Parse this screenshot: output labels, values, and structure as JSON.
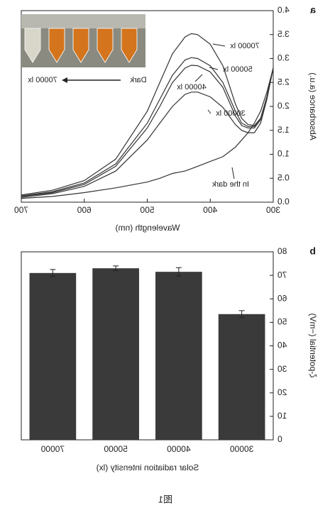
{
  "chart_data": [
    {
      "type": "line",
      "panel_label": "a",
      "x_label": "Wavelength (nm)",
      "y_label": "Absorbance (a.u.)",
      "x": [
        300,
        310,
        320,
        330,
        340,
        350,
        360,
        370,
        380,
        400,
        420,
        430,
        440,
        460,
        480,
        500,
        550,
        600,
        650,
        700
      ],
      "series": [
        {
          "name": "70000 lx",
          "color": "#333333",
          "values": [
            2.8,
            2.2,
            1.75,
            1.6,
            1.62,
            1.75,
            2.05,
            2.45,
            2.85,
            3.3,
            3.5,
            3.52,
            3.45,
            3.1,
            2.5,
            1.9,
            0.9,
            0.45,
            0.25,
            0.15
          ]
        },
        {
          "name": "50000 lx",
          "color": "#333333",
          "values": [
            2.8,
            2.2,
            1.75,
            1.58,
            1.58,
            1.65,
            1.9,
            2.2,
            2.5,
            2.85,
            3.0,
            3.02,
            2.97,
            2.65,
            2.15,
            1.65,
            0.8,
            0.4,
            0.22,
            0.13
          ]
        },
        {
          "name": "40000 lx",
          "color": "#333333",
          "values": [
            2.8,
            2.2,
            1.72,
            1.55,
            1.55,
            1.6,
            1.8,
            2.1,
            2.4,
            2.72,
            2.85,
            2.86,
            2.8,
            2.5,
            2.0,
            1.55,
            0.75,
            0.37,
            0.2,
            0.12
          ]
        },
        {
          "name": "30000 lx",
          "color": "#333333",
          "values": [
            2.8,
            2.15,
            1.65,
            1.45,
            1.45,
            1.5,
            1.62,
            1.8,
            1.98,
            2.2,
            2.3,
            2.3,
            2.25,
            2.0,
            1.65,
            1.3,
            0.65,
            0.33,
            0.18,
            0.1
          ]
        },
        {
          "name": "In the dark",
          "color": "#333333",
          "values": [
            2.8,
            2.3,
            1.9,
            1.65,
            1.45,
            1.3,
            1.15,
            1.05,
            0.95,
            0.85,
            0.75,
            0.7,
            0.65,
            0.6,
            0.5,
            0.42,
            0.3,
            0.2,
            0.12,
            0.08
          ]
        }
      ],
      "xlim": [
        300,
        700
      ],
      "xticks": [
        300,
        400,
        500,
        600,
        700
      ],
      "ylim": [
        0,
        4
      ],
      "yticks": [
        {
          "value": 0,
          "label": "0.0"
        },
        0.5,
        {
          "value": 1,
          "label": "1.0"
        },
        1.5,
        {
          "value": 2,
          "label": "2.0"
        },
        2.5,
        {
          "value": 3,
          "label": "3.0"
        },
        3.5,
        {
          "value": 4,
          "label": "4.0"
        }
      ],
      "inset_labels": [
        "Dark",
        "70000 lx"
      ]
    },
    {
      "type": "bar",
      "panel_label": "b",
      "x_label": "Solar radiation intensity (lx)",
      "y_label": "ζ-potential (−mV)",
      "categories": [
        "30000",
        "40000",
        "50000",
        "70000"
      ],
      "values": [
        53.5,
        71.5,
        73,
        71
      ],
      "errors": [
        1.5,
        1.8,
        1.0,
        1.5
      ],
      "color": "#3a3a3a",
      "ylim": [
        0,
        80
      ],
      "yticks": [
        0,
        10,
        20,
        30,
        40,
        50,
        60,
        70,
        80
      ]
    }
  ],
  "caption": "图1"
}
